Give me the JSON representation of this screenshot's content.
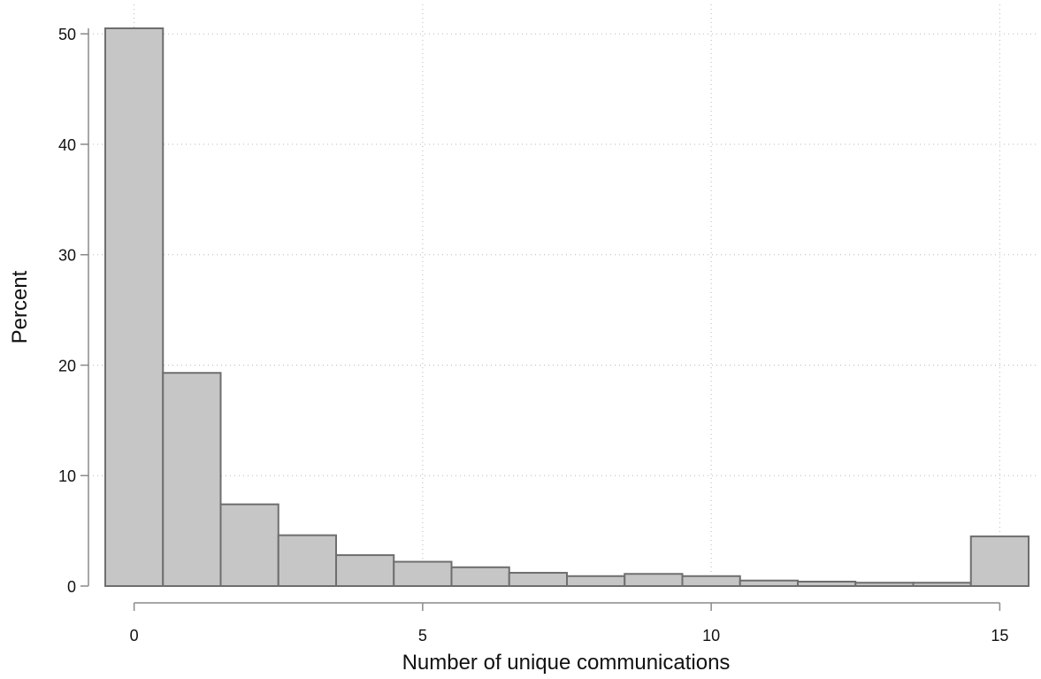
{
  "chart_data": {
    "type": "bar",
    "histogram": true,
    "x": [
      0,
      1,
      2,
      3,
      4,
      5,
      6,
      7,
      8,
      9,
      10,
      11,
      12,
      13,
      14,
      15
    ],
    "values": [
      50.5,
      19.3,
      7.4,
      4.6,
      2.8,
      2.2,
      1.7,
      1.2,
      0.9,
      1.1,
      0.9,
      0.5,
      0.4,
      0.3,
      0.3,
      4.5
    ],
    "bin_width": 1,
    "xlabel": "Number of unique communications",
    "ylabel": "Percent",
    "xlim": [
      -0.5,
      15.5
    ],
    "ylim": [
      0,
      50.5
    ],
    "xticks": [
      0,
      5,
      10,
      15
    ],
    "xtick_labels": [
      "0",
      "5",
      "10",
      "15"
    ],
    "yticks": [
      0,
      10,
      20,
      30,
      40,
      50
    ],
    "ytick_labels": [
      "0",
      "10",
      "20",
      "30",
      "40",
      "50"
    ],
    "grid": true,
    "bar_color": "#c6c6c6",
    "bar_edge_color": "#6e6e6e"
  }
}
